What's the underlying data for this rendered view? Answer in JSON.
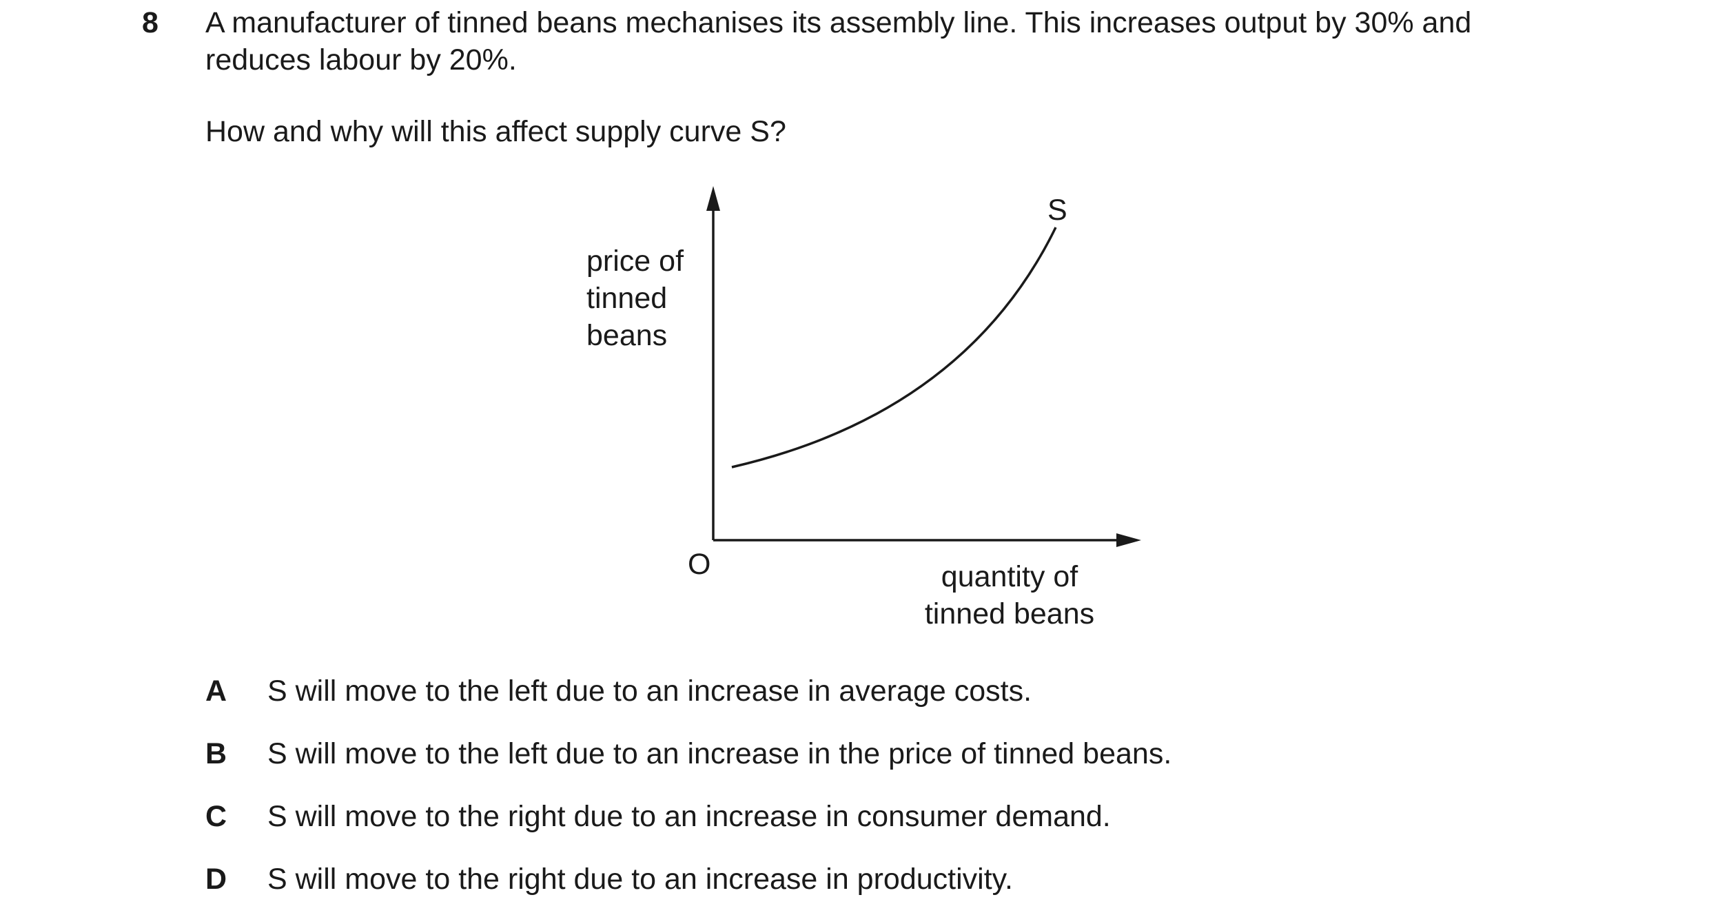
{
  "question": {
    "number": "8",
    "stem_line1": "A manufacturer of tinned beans mechanises its assembly line. This increases output by 30% and",
    "stem_line2": "reduces labour by 20%.",
    "prompt": "How and why will this affect supply curve S?"
  },
  "diagram": {
    "y_axis_label": [
      "price of",
      "tinned",
      "beans"
    ],
    "x_axis_label": [
      "quantity of",
      "tinned beans"
    ],
    "origin_label": "O",
    "curve_label": "S"
  },
  "options": [
    {
      "letter": "A",
      "text": "S will move to the left due to an increase in average costs."
    },
    {
      "letter": "B",
      "text": "S will move to the left due to an increase in the price of tinned beans."
    },
    {
      "letter": "C",
      "text": "S will move to the right due to an increase in consumer demand."
    },
    {
      "letter": "D",
      "text": "S will move to the right due to an increase in productivity."
    }
  ]
}
